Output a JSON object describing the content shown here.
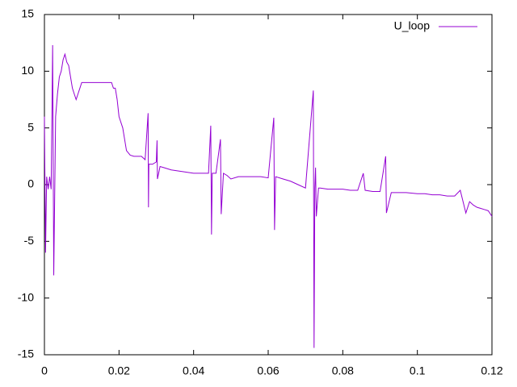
{
  "chart_data": {
    "type": "line",
    "x": [
      0,
      0.0003,
      0.0006,
      0.001,
      0.0014,
      0.0018,
      0.0022,
      0.0025,
      0.003,
      0.0035,
      0.004,
      0.0045,
      0.005,
      0.0055,
      0.006,
      0.0065,
      0.007,
      0.0075,
      0.008,
      0.0085,
      0.009,
      0.0095,
      0.01,
      0.012,
      0.014,
      0.016,
      0.018,
      0.0185,
      0.019,
      0.0195,
      0.02,
      0.021,
      0.022,
      0.023,
      0.024,
      0.025,
      0.026,
      0.027,
      0.0278,
      0.0279,
      0.028,
      0.029,
      0.03,
      0.0302,
      0.0303,
      0.031,
      0.032,
      0.034,
      0.036,
      0.038,
      0.04,
      0.042,
      0.044,
      0.0446,
      0.0448,
      0.045,
      0.046,
      0.0472,
      0.0474,
      0.048,
      0.049,
      0.05,
      0.052,
      0.054,
      0.056,
      0.058,
      0.06,
      0.0615,
      0.0617,
      0.062,
      0.064,
      0.066,
      0.068,
      0.07,
      0.0721,
      0.0723,
      0.0725,
      0.0727,
      0.0729,
      0.0735,
      0.074,
      0.076,
      0.078,
      0.08,
      0.082,
      0.084,
      0.0855,
      0.086,
      0.088,
      0.09,
      0.0915,
      0.0917,
      0.093,
      0.095,
      0.097,
      0.1,
      0.102,
      0.104,
      0.106,
      0.108,
      0.11,
      0.1115,
      0.113,
      0.114,
      0.115,
      0.116,
      0.117,
      0.118,
      0.119,
      0.12
    ],
    "series": [
      {
        "name": "U_loop",
        "color": "#9400d3",
        "values": [
          6,
          -6,
          0.7,
          -0.4,
          0.7,
          -0.4,
          12.3,
          -8,
          6,
          8,
          9.5,
          10,
          11,
          11.5,
          10.8,
          10.5,
          9.5,
          8.5,
          8,
          7.5,
          8,
          8.5,
          9,
          9,
          9,
          9,
          9,
          8.5,
          8.5,
          7.5,
          6,
          5,
          3,
          2.6,
          2.5,
          2.5,
          2.5,
          2.2,
          6.3,
          -2,
          1.8,
          1.8,
          2,
          3.9,
          0.5,
          1.6,
          1.5,
          1.3,
          1.2,
          1.1,
          1,
          1,
          1,
          5.2,
          -4.4,
          1,
          1,
          4,
          -2.6,
          1,
          0.8,
          0.5,
          0.7,
          0.7,
          0.7,
          0.7,
          0.6,
          5.9,
          -4,
          0.7,
          0.5,
          0.3,
          0,
          -0.3,
          8.3,
          -14.4,
          -0.3,
          1.5,
          -2.8,
          -0.3,
          -0.3,
          -0.4,
          -0.4,
          -0.4,
          -0.5,
          -0.5,
          1,
          -0.5,
          -0.6,
          -0.6,
          2.5,
          -2.5,
          -0.7,
          -0.7,
          -0.7,
          -0.8,
          -0.8,
          -0.9,
          -0.9,
          -1,
          -1,
          -0.5,
          -2.5,
          -1.5,
          -1.8,
          -2,
          -2.1,
          -2.2,
          -2.3,
          -2.8
        ]
      }
    ],
    "xlim": [
      0,
      0.12
    ],
    "xticks": [
      0,
      0.02,
      0.04,
      0.06,
      0.08,
      0.1,
      0.12
    ],
    "ylim": [
      -15,
      15
    ],
    "yticks": [
      -15,
      -10,
      -5,
      0,
      5,
      10,
      15
    ],
    "legend": "top-right"
  }
}
